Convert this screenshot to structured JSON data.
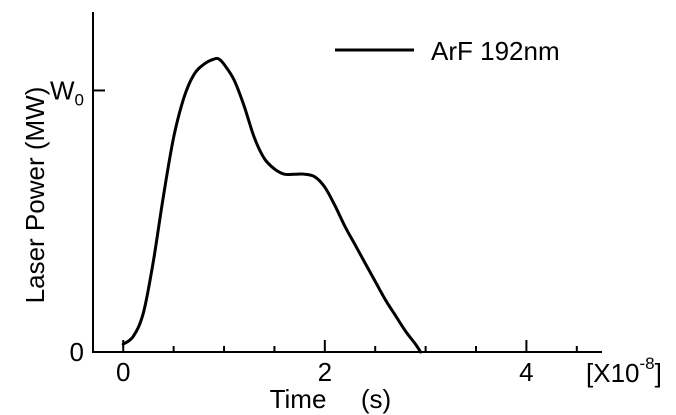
{
  "chart_data": {
    "type": "line",
    "xlabel": "Time",
    "xunit": "(s)",
    "ylabel": "Laser Power (MW)",
    "x_multiplier_label": {
      "prefix": "[X10",
      "exponent": "-8",
      "suffix": "]"
    },
    "xlim": [
      -0.3,
      4.75
    ],
    "ylim": [
      0,
      1.3
    ],
    "x_ticks": [
      0,
      2,
      4
    ],
    "x_tick_labels": [
      "0",
      "2",
      "4"
    ],
    "x_minor_ticks": [
      0.5,
      1,
      1.5,
      2.5,
      3,
      3.5,
      4.5
    ],
    "y_ticks": [
      0,
      1
    ],
    "y_tick_labels": [
      {
        "text": "0",
        "sub": ""
      },
      {
        "text": "W",
        "sub": "0"
      }
    ],
    "grid": false,
    "legend_position": "top-right",
    "series": [
      {
        "name": "ArF 192nm",
        "color": "#000000",
        "x": [
          0,
          0.1,
          0.2,
          0.3,
          0.4,
          0.5,
          0.6,
          0.7,
          0.8,
          0.9,
          0.95,
          1.0,
          1.1,
          1.2,
          1.3,
          1.4,
          1.5,
          1.6,
          1.7,
          1.8,
          1.9,
          2.0,
          2.1,
          2.2,
          2.3,
          2.4,
          2.5,
          2.6,
          2.7,
          2.8,
          2.9,
          2.95
        ],
        "y": [
          0.03,
          0.06,
          0.15,
          0.35,
          0.6,
          0.82,
          0.97,
          1.06,
          1.1,
          1.12,
          1.12,
          1.1,
          1.04,
          0.94,
          0.82,
          0.74,
          0.7,
          0.68,
          0.68,
          0.68,
          0.67,
          0.63,
          0.56,
          0.48,
          0.41,
          0.34,
          0.27,
          0.2,
          0.14,
          0.08,
          0.03,
          0.0
        ]
      }
    ]
  }
}
